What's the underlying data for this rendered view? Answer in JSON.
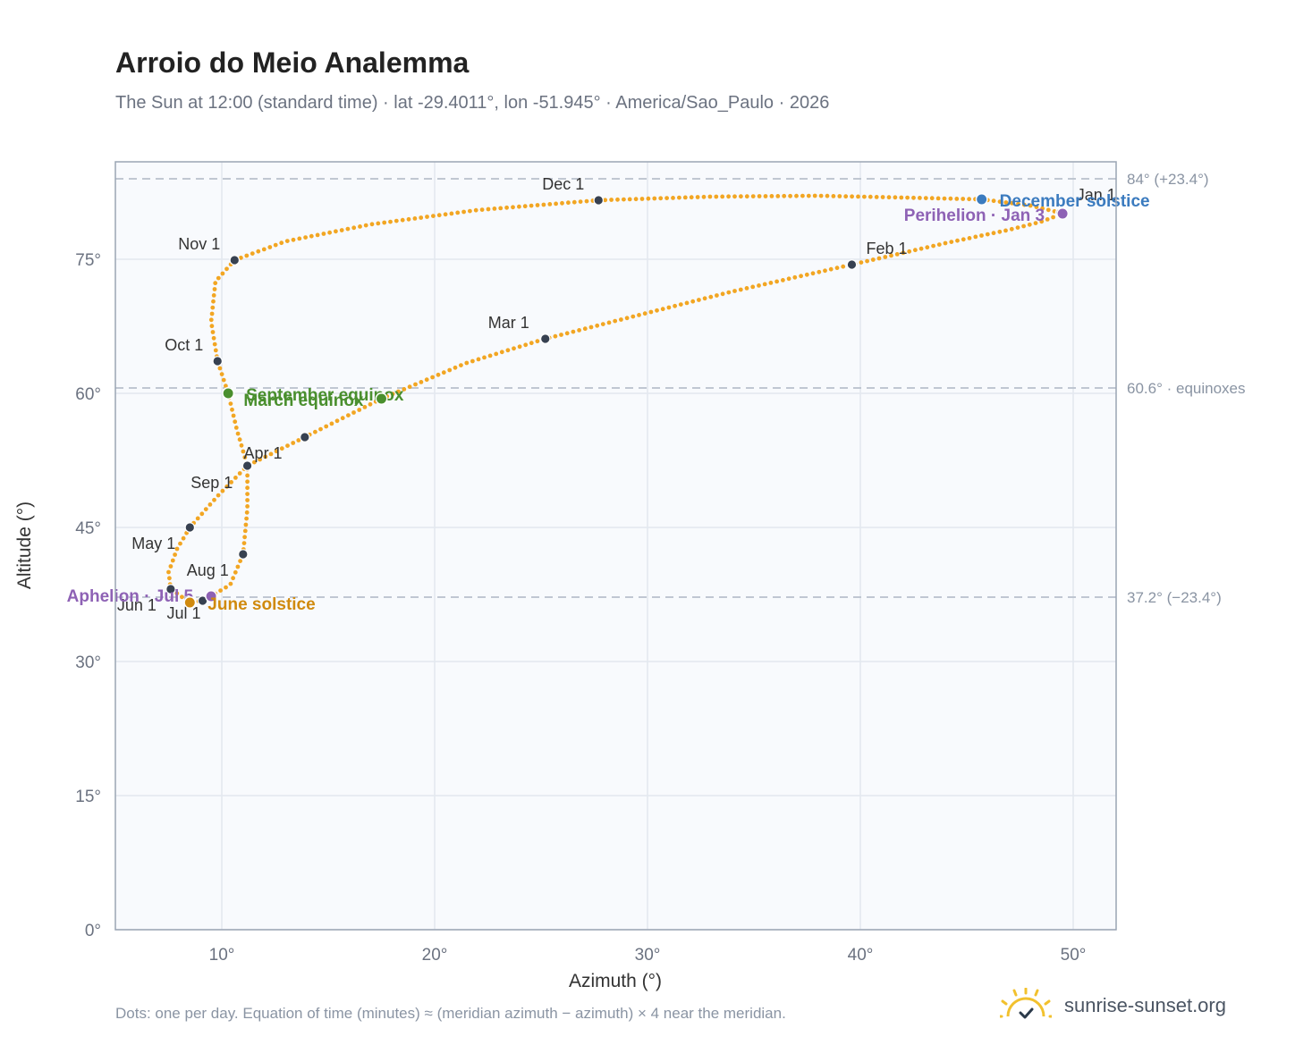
{
  "header": {
    "title": "Arroio do Meio Analemma",
    "subtitle": "The Sun at 12:00 (standard time) · lat -29.4011°, lon -51.945° · America/Sao_Paulo · 2026"
  },
  "footer": {
    "note": "Dots: one per day. Equation of time (minutes) ≈ (meridian azimuth − azimuth) × 4 near the meridian.",
    "brand": "sunrise-sunset.org"
  },
  "colors": {
    "path": "#f2a623",
    "month_marker": "#374151",
    "equinox": "#4a8f2e",
    "june_solstice": "#d08a0e",
    "december_solstice": "#3b7bbf",
    "apsis": "#8e62b5",
    "grid": "#e3e8ef",
    "plot_bg": "#f8fafd",
    "reference_line": "#b8c0cc",
    "brand_sun": "#f2c12e"
  },
  "chart_data": {
    "type": "scatter",
    "title": "Arroio do Meio Analemma",
    "xlabel": "Azimuth (°)",
    "ylabel": "Altitude (°)",
    "xlim": [
      5,
      52
    ],
    "ylim": [
      0,
      86
    ],
    "x_ticks": [
      10,
      20,
      30,
      40,
      50
    ],
    "x_tick_labels": [
      "10°",
      "20°",
      "30°",
      "40°",
      "50°"
    ],
    "y_ticks": [
      0,
      15,
      30,
      45,
      60,
      75
    ],
    "y_tick_labels": [
      "0°",
      "15°",
      "30°",
      "45°",
      "60°",
      "75°"
    ],
    "grid": true,
    "reference_lines": [
      {
        "altitude": 84.0,
        "label": "84° (+23.4°)"
      },
      {
        "altitude": 60.6,
        "label": "60.6° · equinoxes"
      },
      {
        "altitude": 37.2,
        "label": "37.2° (−23.4°)"
      }
    ],
    "month_markers": [
      {
        "label": "Jan 1",
        "azimuth": 49.4,
        "altitude": 80.2
      },
      {
        "label": "Feb 1",
        "azimuth": 39.6,
        "altitude": 74.4
      },
      {
        "label": "Mar 1",
        "azimuth": 25.2,
        "altitude": 66.1
      },
      {
        "label": "",
        "azimuth": 13.9,
        "altitude": 55.1
      },
      {
        "label": "Apr 1",
        "azimuth": 11.2,
        "altitude": 51.9
      },
      {
        "label": "May 1",
        "azimuth": 8.5,
        "altitude": 45.0
      },
      {
        "label": "Jun 1",
        "azimuth": 7.6,
        "altitude": 38.1
      },
      {
        "label": "Jul 1",
        "azimuth": 9.1,
        "altitude": 36.8
      },
      {
        "label": "Aug 1",
        "azimuth": 11.0,
        "altitude": 42.0
      },
      {
        "label": "Sep 1",
        "azimuth": 11.2,
        "altitude": 51.9
      },
      {
        "label": "Oct 1",
        "azimuth": 9.8,
        "altitude": 63.6
      },
      {
        "label": "Nov 1",
        "azimuth": 10.6,
        "altitude": 74.9
      },
      {
        "label": "Dec 1",
        "azimuth": 27.7,
        "altitude": 81.6
      }
    ],
    "events": [
      {
        "label": "December solstice",
        "azimuth": 45.7,
        "altitude": 81.7,
        "color_key": "december_solstice"
      },
      {
        "label": "Perihelion · Jan 3",
        "azimuth": 49.5,
        "altitude": 80.1,
        "color_key": "apsis"
      },
      {
        "label": "September equinox",
        "azimuth": 10.3,
        "altitude": 60.0,
        "color_key": "equinox"
      },
      {
        "label": "March equinox",
        "azimuth": 17.5,
        "altitude": 59.4,
        "color_key": "equinox"
      },
      {
        "label": "Aphelion · Jul 5",
        "azimuth": 9.5,
        "altitude": 37.3,
        "color_key": "apsis"
      },
      {
        "label": "June solstice",
        "azimuth": 8.5,
        "altitude": 36.6,
        "color_key": "june_solstice"
      }
    ],
    "path_keypoints_chronological": [
      [
        49.4,
        80.2
      ],
      [
        49.5,
        80.1
      ],
      [
        48.5,
        79.2
      ],
      [
        47.0,
        78.3
      ],
      [
        44.0,
        76.8
      ],
      [
        39.6,
        74.4
      ],
      [
        34.0,
        71.4
      ],
      [
        28.5,
        68.1
      ],
      [
        25.2,
        66.1
      ],
      [
        21.5,
        63.4
      ],
      [
        17.5,
        59.4
      ],
      [
        13.9,
        55.1
      ],
      [
        11.2,
        51.9
      ],
      [
        9.8,
        48.5
      ],
      [
        8.5,
        45.0
      ],
      [
        7.9,
        42.6
      ],
      [
        7.5,
        40.0
      ],
      [
        7.6,
        38.1
      ],
      [
        8.5,
        36.6
      ],
      [
        9.1,
        36.8
      ],
      [
        9.5,
        37.3
      ],
      [
        10.4,
        38.6
      ],
      [
        11.0,
        42.0
      ],
      [
        11.2,
        47.0
      ],
      [
        11.2,
        51.9
      ],
      [
        10.7,
        56.0
      ],
      [
        10.3,
        60.0
      ],
      [
        9.8,
        63.6
      ],
      [
        9.5,
        68.0
      ],
      [
        9.7,
        72.5
      ],
      [
        10.6,
        74.9
      ],
      [
        13.0,
        77.0
      ],
      [
        17.0,
        78.9
      ],
      [
        22.0,
        80.5
      ],
      [
        27.7,
        81.6
      ],
      [
        33.0,
        82.0
      ],
      [
        38.0,
        82.1
      ],
      [
        42.0,
        81.9
      ],
      [
        45.7,
        81.7
      ],
      [
        48.0,
        81.0
      ],
      [
        49.4,
        80.2
      ]
    ]
  }
}
